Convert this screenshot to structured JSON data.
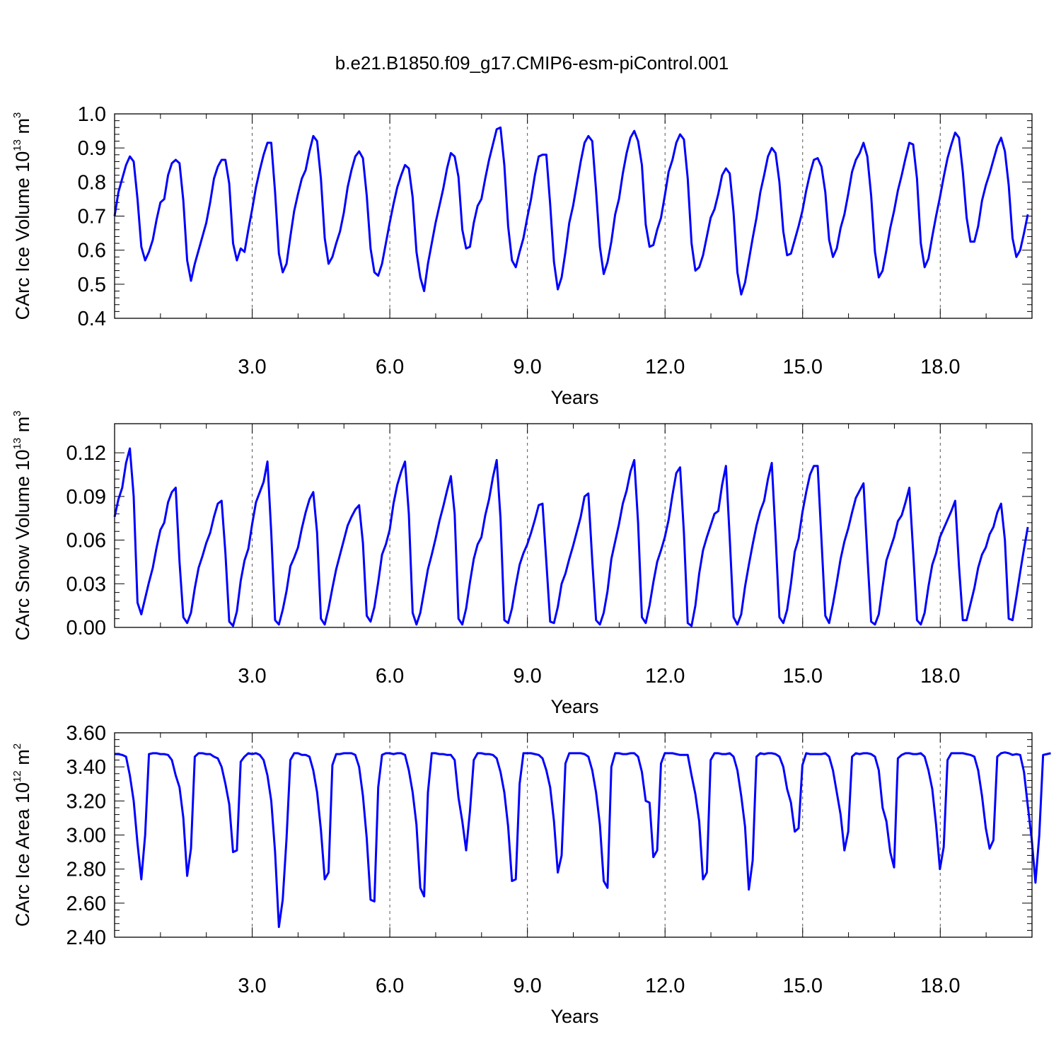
{
  "figure": {
    "title": "b.e21.B1850.f09_g17.CMIP6-esm-piControl.001",
    "line_color": "#0000ff"
  },
  "chart_data": [
    {
      "type": "line",
      "title": "b.e21.B1850.f09_g17.CMIP6-esm-piControl.001",
      "xlabel": "Years",
      "ylabel": {
        "text": "CArc Ice Volume 10",
        "exp": "13",
        "unit": " m",
        "unit_exp": "3"
      },
      "xlim": [
        0.0,
        20.0
      ],
      "ylim": [
        0.4,
        1.0
      ],
      "x_ticks": [
        3.0,
        6.0,
        9.0,
        12.0,
        15.0,
        18.0
      ],
      "x_tick_labels": [
        "3.0",
        "6.0",
        "9.0",
        "12.0",
        "15.0",
        "18.0"
      ],
      "y_ticks": [
        0.4,
        0.5,
        0.6,
        0.7,
        0.8,
        0.9,
        1.0
      ],
      "y_tick_labels": [
        "0.4",
        "0.5",
        "0.6",
        "0.7",
        "0.8",
        "0.9",
        "1.0"
      ],
      "x_start": 0.0,
      "x_step": 0.0833,
      "grid": "vertical-dashed",
      "color": "#0000ff",
      "series": [
        {
          "values": [
            0.7,
            0.77,
            0.81,
            0.85,
            0.875,
            0.86,
            0.75,
            0.61,
            0.57,
            0.595,
            0.63,
            0.69,
            0.74,
            0.75,
            0.82,
            0.855,
            0.865,
            0.855,
            0.745,
            0.57,
            0.51,
            0.56,
            0.6,
            0.64,
            0.68,
            0.74,
            0.81,
            0.845,
            0.865,
            0.865,
            0.795,
            0.62,
            0.57,
            0.605,
            0.595,
            0.66,
            0.72,
            0.785,
            0.835,
            0.88,
            0.915,
            0.915,
            0.77,
            0.59,
            0.535,
            0.56,
            0.64,
            0.715,
            0.765,
            0.81,
            0.835,
            0.89,
            0.935,
            0.92,
            0.81,
            0.635,
            0.56,
            0.58,
            0.62,
            0.655,
            0.71,
            0.785,
            0.835,
            0.875,
            0.89,
            0.87,
            0.76,
            0.605,
            0.535,
            0.525,
            0.56,
            0.62,
            0.68,
            0.735,
            0.785,
            0.82,
            0.85,
            0.84,
            0.755,
            0.595,
            0.52,
            0.48,
            0.56,
            0.62,
            0.68,
            0.73,
            0.78,
            0.84,
            0.885,
            0.875,
            0.815,
            0.66,
            0.605,
            0.61,
            0.68,
            0.73,
            0.75,
            0.81,
            0.865,
            0.91,
            0.955,
            0.96,
            0.85,
            0.67,
            0.57,
            0.55,
            0.595,
            0.635,
            0.695,
            0.75,
            0.82,
            0.875,
            0.88,
            0.88,
            0.735,
            0.565,
            0.485,
            0.52,
            0.595,
            0.68,
            0.73,
            0.795,
            0.86,
            0.915,
            0.935,
            0.92,
            0.775,
            0.61,
            0.53,
            0.565,
            0.625,
            0.705,
            0.75,
            0.825,
            0.885,
            0.93,
            0.95,
            0.92,
            0.85,
            0.675,
            0.61,
            0.615,
            0.66,
            0.695,
            0.76,
            0.83,
            0.865,
            0.915,
            0.94,
            0.925,
            0.81,
            0.62,
            0.54,
            0.55,
            0.585,
            0.64,
            0.695,
            0.72,
            0.765,
            0.82,
            0.84,
            0.825,
            0.71,
            0.535,
            0.47,
            0.505,
            0.57,
            0.635,
            0.695,
            0.77,
            0.82,
            0.875,
            0.9,
            0.885,
            0.8,
            0.655,
            0.585,
            0.59,
            0.63,
            0.67,
            0.715,
            0.775,
            0.825,
            0.865,
            0.87,
            0.845,
            0.77,
            0.63,
            0.58,
            0.605,
            0.665,
            0.705,
            0.765,
            0.83,
            0.865,
            0.885,
            0.915,
            0.875,
            0.76,
            0.595,
            0.52,
            0.54,
            0.6,
            0.665,
            0.715,
            0.775,
            0.82,
            0.87,
            0.915,
            0.91,
            0.81,
            0.62,
            0.55,
            0.575,
            0.64,
            0.7,
            0.755,
            0.815,
            0.87,
            0.91,
            0.945,
            0.93,
            0.83,
            0.695,
            0.625,
            0.625,
            0.67,
            0.745,
            0.79,
            0.825,
            0.865,
            0.905,
            0.93,
            0.89,
            0.79,
            0.635,
            0.58,
            0.6,
            0.65,
            0.705
          ]
        }
      ]
    },
    {
      "type": "line",
      "xlabel": "Years",
      "ylabel": {
        "text": "CArc Snow Volume 10",
        "exp": "13",
        "unit": " m",
        "unit_exp": "3"
      },
      "xlim": [
        0.0,
        20.0
      ],
      "ylim": [
        0.0,
        0.14
      ],
      "x_ticks": [
        3.0,
        6.0,
        9.0,
        12.0,
        15.0,
        18.0
      ],
      "x_tick_labels": [
        "3.0",
        "6.0",
        "9.0",
        "12.0",
        "15.0",
        "18.0"
      ],
      "y_ticks": [
        0.0,
        0.03,
        0.06,
        0.09,
        0.12
      ],
      "y_tick_labels": [
        "0.00",
        "0.03",
        "0.06",
        "0.09",
        "0.12"
      ],
      "x_start": 0.0,
      "x_step": 0.0833,
      "grid": "vertical-dashed",
      "color": "#0000ff",
      "series": [
        {
          "values": [
            0.076,
            0.088,
            0.096,
            0.113,
            0.123,
            0.09,
            0.017,
            0.009,
            0.02,
            0.031,
            0.041,
            0.055,
            0.067,
            0.072,
            0.086,
            0.093,
            0.096,
            0.045,
            0.007,
            0.003,
            0.01,
            0.027,
            0.041,
            0.049,
            0.058,
            0.065,
            0.076,
            0.085,
            0.087,
            0.051,
            0.004,
            0.001,
            0.011,
            0.032,
            0.046,
            0.054,
            0.071,
            0.086,
            0.093,
            0.1,
            0.114,
            0.065,
            0.005,
            0.002,
            0.012,
            0.025,
            0.042,
            0.048,
            0.055,
            0.068,
            0.079,
            0.088,
            0.093,
            0.065,
            0.006,
            0.002,
            0.013,
            0.027,
            0.04,
            0.05,
            0.06,
            0.07,
            0.076,
            0.081,
            0.084,
            0.058,
            0.008,
            0.004,
            0.014,
            0.031,
            0.05,
            0.057,
            0.067,
            0.085,
            0.098,
            0.107,
            0.114,
            0.078,
            0.01,
            0.002,
            0.01,
            0.025,
            0.04,
            0.05,
            0.061,
            0.073,
            0.083,
            0.094,
            0.104,
            0.078,
            0.006,
            0.002,
            0.013,
            0.031,
            0.047,
            0.057,
            0.062,
            0.077,
            0.088,
            0.103,
            0.115,
            0.075,
            0.005,
            0.003,
            0.013,
            0.029,
            0.043,
            0.051,
            0.057,
            0.065,
            0.074,
            0.084,
            0.085,
            0.045,
            0.004,
            0.003,
            0.014,
            0.03,
            0.037,
            0.047,
            0.056,
            0.066,
            0.076,
            0.09,
            0.092,
            0.046,
            0.005,
            0.002,
            0.01,
            0.025,
            0.047,
            0.059,
            0.071,
            0.085,
            0.094,
            0.107,
            0.115,
            0.072,
            0.007,
            0.003,
            0.015,
            0.031,
            0.045,
            0.053,
            0.062,
            0.074,
            0.091,
            0.106,
            0.11,
            0.065,
            0.003,
            0.001,
            0.015,
            0.037,
            0.053,
            0.062,
            0.07,
            0.078,
            0.08,
            0.098,
            0.111,
            0.061,
            0.007,
            0.002,
            0.009,
            0.028,
            0.043,
            0.057,
            0.07,
            0.08,
            0.087,
            0.102,
            0.113,
            0.063,
            0.007,
            0.003,
            0.012,
            0.03,
            0.052,
            0.061,
            0.079,
            0.093,
            0.105,
            0.111,
            0.111,
            0.06,
            0.008,
            0.003,
            0.016,
            0.031,
            0.047,
            0.059,
            0.068,
            0.079,
            0.089,
            0.094,
            0.099,
            0.05,
            0.004,
            0.002,
            0.009,
            0.028,
            0.046,
            0.054,
            0.062,
            0.073,
            0.077,
            0.086,
            0.096,
            0.052,
            0.005,
            0.002,
            0.01,
            0.028,
            0.043,
            0.051,
            0.062,
            0.068,
            0.074,
            0.08,
            0.087,
            0.042,
            0.005,
            0.005,
            0.016,
            0.027,
            0.041,
            0.05,
            0.055,
            0.064,
            0.069,
            0.079,
            0.085,
            0.06,
            0.006,
            0.005,
            0.021,
            0.038,
            0.054,
            0.069
          ]
        }
      ]
    },
    {
      "type": "line",
      "xlabel": "Years",
      "ylabel": {
        "text": "CArc Ice Area 10",
        "exp": "12",
        "unit": " m",
        "unit_exp": "2"
      },
      "xlim": [
        0.0,
        20.0
      ],
      "ylim": [
        2.4,
        3.6
      ],
      "x_ticks": [
        3.0,
        6.0,
        9.0,
        12.0,
        15.0,
        18.0
      ],
      "x_tick_labels": [
        "3.0",
        "6.0",
        "9.0",
        "12.0",
        "15.0",
        "18.0"
      ],
      "y_ticks": [
        2.4,
        2.6,
        2.8,
        3.0,
        3.2,
        3.4,
        3.6
      ],
      "y_tick_labels": [
        "2.40",
        "2.60",
        "2.80",
        "3.00",
        "3.20",
        "3.40",
        "3.60"
      ],
      "x_start": 0.0,
      "x_step": 0.0833,
      "grid": "vertical-dashed",
      "color": "#0000ff",
      "series": [
        {
          "values": [
            3.475,
            3.475,
            3.47,
            3.46,
            3.35,
            3.2,
            2.95,
            2.74,
            3.0,
            3.475,
            3.48,
            3.48,
            3.475,
            3.475,
            3.47,
            3.44,
            3.35,
            3.28,
            3.1,
            2.76,
            2.92,
            3.46,
            3.48,
            3.48,
            3.475,
            3.475,
            3.46,
            3.45,
            3.4,
            3.3,
            3.18,
            2.9,
            2.91,
            3.43,
            3.46,
            3.48,
            3.475,
            3.48,
            3.47,
            3.44,
            3.35,
            3.2,
            2.9,
            2.46,
            2.62,
            2.98,
            3.44,
            3.48,
            3.48,
            3.47,
            3.47,
            3.46,
            3.38,
            3.25,
            3.03,
            2.74,
            2.78,
            3.41,
            3.475,
            3.475,
            3.48,
            3.48,
            3.48,
            3.47,
            3.4,
            3.23,
            2.98,
            2.62,
            2.61,
            3.28,
            3.47,
            3.48,
            3.48,
            3.475,
            3.48,
            3.48,
            3.47,
            3.38,
            3.25,
            3.06,
            2.69,
            2.64,
            3.25,
            3.48,
            3.48,
            3.475,
            3.475,
            3.47,
            3.47,
            3.44,
            3.22,
            3.08,
            2.91,
            3.14,
            3.44,
            3.48,
            3.48,
            3.475,
            3.475,
            3.47,
            3.45,
            3.37,
            3.25,
            3.05,
            2.73,
            2.74,
            3.3,
            3.48,
            3.48,
            3.48,
            3.475,
            3.47,
            3.45,
            3.38,
            3.28,
            3.08,
            2.78,
            2.88,
            3.42,
            3.48,
            3.48,
            3.48,
            3.48,
            3.475,
            3.46,
            3.38,
            3.25,
            3.06,
            2.73,
            2.69,
            3.4,
            3.48,
            3.48,
            3.475,
            3.475,
            3.48,
            3.48,
            3.46,
            3.37,
            3.2,
            3.19,
            2.87,
            2.91,
            3.42,
            3.48,
            3.48,
            3.48,
            3.475,
            3.47,
            3.47,
            3.47,
            3.35,
            3.24,
            3.08,
            2.74,
            2.78,
            3.44,
            3.48,
            3.48,
            3.475,
            3.475,
            3.48,
            3.46,
            3.38,
            3.23,
            3.05,
            2.68,
            2.85,
            3.46,
            3.48,
            3.475,
            3.48,
            3.48,
            3.475,
            3.46,
            3.4,
            3.27,
            3.19,
            3.02,
            3.04,
            3.41,
            3.48,
            3.475,
            3.475,
            3.475,
            3.475,
            3.48,
            3.46,
            3.38,
            3.25,
            3.12,
            2.91,
            3.02,
            3.46,
            3.48,
            3.475,
            3.48,
            3.48,
            3.475,
            3.46,
            3.38,
            3.16,
            3.08,
            2.9,
            2.81,
            3.45,
            3.47,
            3.48,
            3.48,
            3.475,
            3.475,
            3.48,
            3.46,
            3.38,
            3.27,
            3.06,
            2.8,
            2.93,
            3.44,
            3.48,
            3.48,
            3.48,
            3.48,
            3.475,
            3.47,
            3.46,
            3.38,
            3.23,
            3.04,
            2.92,
            2.97,
            3.46,
            3.48,
            3.485,
            3.48,
            3.47,
            3.475,
            3.47,
            3.37,
            3.17,
            2.98,
            2.72,
            3.0,
            3.47,
            3.475,
            3.48
          ]
        }
      ]
    }
  ]
}
